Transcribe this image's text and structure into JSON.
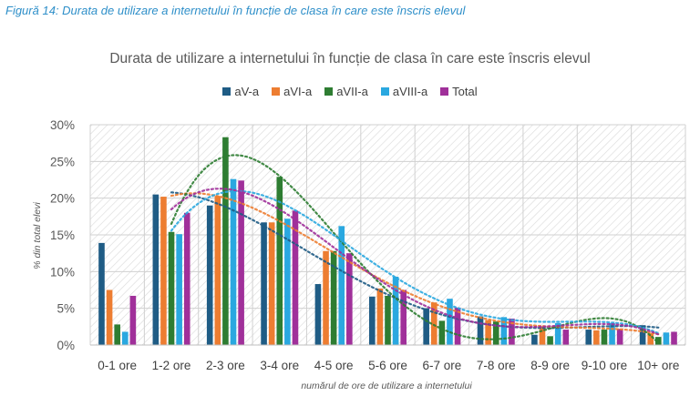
{
  "caption": "Figură 14: Durata de utilizare a internetului în funcție de clasa în care este înscris elevul",
  "chart_data": {
    "type": "bar",
    "title": "Durata de utilizare a internetului în funcție de clasa în care este înscris elevul",
    "xlabel": "numărul de ore de utilizare a internetului",
    "ylabel": "% din total elevi",
    "ylim": [
      0,
      30
    ],
    "yticks": [
      "0%",
      "5%",
      "10%",
      "15%",
      "20%",
      "25%",
      "30%"
    ],
    "grid": true,
    "legend_position": "top",
    "trendlines": "dotted polynomial trendline per series",
    "categories": [
      "0-1 ore",
      "1-2 ore",
      "2-3 ore",
      "3-4 ore",
      "4-5 ore",
      "5-6 ore",
      "6-7 ore",
      "7-8 ore",
      "8-9 ore",
      "9-10 ore",
      "10+ ore"
    ],
    "series": [
      {
        "name": "aV-a",
        "color": "#1f5c85",
        "values": [
          13.9,
          20.5,
          19.0,
          16.7,
          8.3,
          6.6,
          5.0,
          3.9,
          1.4,
          2.1,
          2.7
        ]
      },
      {
        "name": "aVI-a",
        "color": "#ed7d31",
        "values": [
          7.5,
          20.2,
          20.3,
          16.7,
          12.8,
          7.7,
          5.8,
          3.4,
          2.5,
          2.0,
          1.6
        ]
      },
      {
        "name": "aVII-a",
        "color": "#2e7d32",
        "values": [
          2.8,
          15.4,
          28.3,
          22.9,
          12.8,
          6.7,
          3.3,
          3.2,
          1.2,
          2.1,
          1.1
        ]
      },
      {
        "name": "aVIII-a",
        "color": "#2aa8e0",
        "values": [
          1.8,
          15.1,
          22.6,
          17.2,
          16.2,
          9.3,
          6.3,
          3.8,
          3.0,
          3.0,
          1.7
        ]
      },
      {
        "name": "Total",
        "color": "#a0309a",
        "values": [
          6.7,
          18.0,
          22.4,
          18.3,
          12.5,
          7.5,
          5.1,
          3.6,
          2.1,
          2.2,
          1.8
        ]
      }
    ]
  }
}
